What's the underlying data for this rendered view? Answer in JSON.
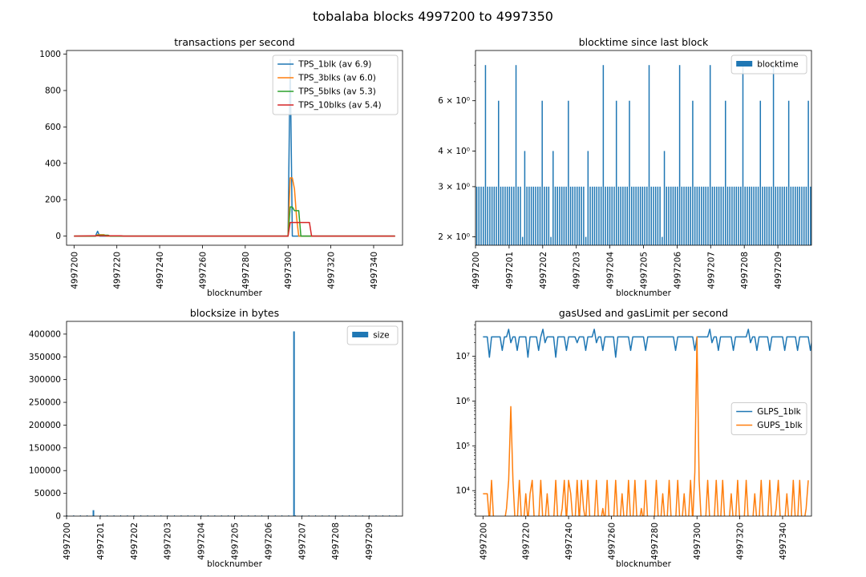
{
  "figure_title": "tobalaba blocks 4997200 to 4997350",
  "colors": {
    "blue": "#1f77b4",
    "orange": "#ff7f0e",
    "green": "#2ca02c",
    "red": "#d62728"
  },
  "chart_data": [
    {
      "id": "tps",
      "type": "line",
      "title": "transactions per second",
      "xlabel": "blocknumber",
      "ylabel": "",
      "xlim": [
        4997196.5,
        4997353.5
      ],
      "ylim": [
        -50,
        1020
      ],
      "xticks": [
        4997200,
        4997220,
        4997240,
        4997260,
        4997280,
        4997300,
        4997320,
        4997340
      ],
      "yticks": [
        0,
        200,
        400,
        600,
        800,
        1000
      ],
      "legend_position": "upper right",
      "series": [
        {
          "name": "TPS_1blk (av 6.9)",
          "color": "#1f77b4",
          "points": [
            [
              4997200,
              0
            ],
            [
              4997210,
              0
            ],
            [
              4997211,
              27
            ],
            [
              4997212,
              0
            ],
            [
              4997300,
              0
            ],
            [
              4997301,
              970
            ],
            [
              4997302,
              0
            ],
            [
              4997350,
              0
            ]
          ]
        },
        {
          "name": "TPS_3blks (av 6.0)",
          "color": "#ff7f0e",
          "points": [
            [
              4997200,
              0
            ],
            [
              4997210,
              0
            ],
            [
              4997211,
              8
            ],
            [
              4997214,
              8
            ],
            [
              4997215,
              0
            ],
            [
              4997300,
              0
            ],
            [
              4997301,
              320
            ],
            [
              4997302,
              320
            ],
            [
              4997303,
              260
            ],
            [
              4997304,
              100
            ],
            [
              4997305,
              0
            ],
            [
              4997350,
              0
            ]
          ]
        },
        {
          "name": "TPS_5blks (av 5.3)",
          "color": "#2ca02c",
          "points": [
            [
              4997200,
              0
            ],
            [
              4997210,
              0
            ],
            [
              4997211,
              5
            ],
            [
              4997216,
              5
            ],
            [
              4997217,
              0
            ],
            [
              4997300,
              0
            ],
            [
              4997301,
              160
            ],
            [
              4997302,
              160
            ],
            [
              4997303,
              140
            ],
            [
              4997305,
              140
            ],
            [
              4997306,
              0
            ],
            [
              4997350,
              0
            ]
          ]
        },
        {
          "name": "TPS_10blks (av 5.4)",
          "color": "#d62728",
          "points": [
            [
              4997200,
              0
            ],
            [
              4997210,
              2
            ],
            [
              4997222,
              2
            ],
            [
              4997223,
              0
            ],
            [
              4997300,
              0
            ],
            [
              4997301,
              75
            ],
            [
              4997310,
              75
            ],
            [
              4997311,
              0
            ],
            [
              4997350,
              0
            ]
          ]
        }
      ]
    },
    {
      "id": "blocktime",
      "type": "bar",
      "title": "blocktime since last block",
      "xlabel": "blocknumber",
      "ylabel": "",
      "yscale": "log",
      "xlim": [
        4997200,
        4997210
      ],
      "ylim": [
        1.87,
        9.0
      ],
      "xticks": [
        4997200,
        4997201,
        4997202,
        4997203,
        4997204,
        4997205,
        4997206,
        4997207,
        4997208,
        4997209
      ],
      "yticks": [
        2,
        3,
        4,
        6
      ],
      "ytick_labels": [
        "2 × 10⁰",
        "3 × 10⁰",
        "4 × 10⁰",
        "6 × 10⁰"
      ],
      "legend_position": "upper right",
      "series": [
        {
          "name": "blocktime",
          "color": "#1f77b4",
          "values": [
            3,
            3,
            3,
            3,
            8,
            3,
            3,
            3,
            3,
            3,
            6,
            3,
            3,
            3,
            3,
            3,
            3,
            3,
            8,
            3,
            3,
            2,
            4,
            3,
            3,
            3,
            3,
            3,
            3,
            3,
            6,
            3,
            3,
            3,
            2,
            4,
            3,
            3,
            3,
            3,
            3,
            3,
            6,
            3,
            3,
            3,
            3,
            3,
            3,
            3,
            2,
            4,
            3,
            3,
            3,
            3,
            3,
            3,
            8,
            3,
            3,
            3,
            3,
            3,
            6,
            3,
            3,
            3,
            3,
            3,
            6,
            3,
            3,
            3,
            3,
            3,
            3,
            3,
            3,
            8,
            3,
            3,
            3,
            3,
            3,
            2,
            4,
            3,
            3,
            3,
            3,
            3,
            3,
            8,
            3,
            3,
            3,
            3,
            3,
            6,
            3,
            3,
            3,
            3,
            3,
            3,
            3,
            8,
            3,
            3,
            3,
            3,
            3,
            3,
            6,
            3,
            3,
            3,
            3,
            3,
            3,
            3,
            8,
            3,
            3,
            3,
            3,
            3,
            3,
            3,
            6,
            3,
            3,
            3,
            3,
            3,
            8,
            3,
            3,
            3,
            3,
            3,
            3,
            6,
            3,
            3,
            3,
            3,
            3,
            3,
            3,
            3,
            6,
            3
          ]
        }
      ]
    },
    {
      "id": "blocksize",
      "type": "bar",
      "title": "blocksize in bytes",
      "xlabel": "blocknumber",
      "ylabel": "",
      "xlim": [
        4997200,
        4997210
      ],
      "ylim": [
        0,
        428000
      ],
      "xticks": [
        4997200,
        4997201,
        4997202,
        4997203,
        4997204,
        4997205,
        4997206,
        4997207,
        4997208,
        4997209
      ],
      "yticks": [
        0,
        50000,
        100000,
        150000,
        200000,
        250000,
        300000,
        350000,
        400000
      ],
      "legend_position": "upper right",
      "series": [
        {
          "name": "size",
          "color": "#1f77b4",
          "values": [
            [
              4997200.8,
              13000
            ],
            [
              4997206.77,
              406000
            ]
          ]
        }
      ]
    },
    {
      "id": "gas",
      "type": "line",
      "title": "gasUsed and gasLimit per second",
      "xlabel": "blocknumber",
      "ylabel": "",
      "yscale": "log",
      "xlim": [
        4997196.5,
        4997353.5
      ],
      "ylim": [
        2700,
        60000000
      ],
      "xticks": [
        4997200,
        4997220,
        4997240,
        4997260,
        4997280,
        4997300,
        4997320,
        4997340
      ],
      "yticks": [
        10000,
        100000,
        1000000,
        10000000
      ],
      "ytick_labels": [
        "10⁴",
        "10⁵",
        "10⁶",
        "10⁷"
      ],
      "legend_position": "center right",
      "series": [
        {
          "name": "GLPS_1blk",
          "color": "#1f77b4",
          "values": [
            27000000,
            27000000,
            27000000,
            9500000,
            27000000,
            27000000,
            27000000,
            27000000,
            27000000,
            13500000,
            27000000,
            27000000,
            40000000,
            20000000,
            27000000,
            27000000,
            13500000,
            27000000,
            27000000,
            27000000,
            27000000,
            9500000,
            27000000,
            27000000,
            27000000,
            27000000,
            13500000,
            27000000,
            40000000,
            20000000,
            27000000,
            27000000,
            27000000,
            27000000,
            9500000,
            27000000,
            27000000,
            27000000,
            27000000,
            13500000,
            27000000,
            27000000,
            27000000,
            27000000,
            20000000,
            27000000,
            27000000,
            27000000,
            13500000,
            27000000,
            27000000,
            27000000,
            40000000,
            20000000,
            27000000,
            27000000,
            13500000,
            27000000,
            27000000,
            27000000,
            27000000,
            27000000,
            9500000,
            27000000,
            27000000,
            27000000,
            27000000,
            27000000,
            27000000,
            13500000,
            27000000,
            27000000,
            27000000,
            27000000,
            27000000,
            27000000,
            13500000,
            27000000,
            27000000,
            27000000,
            27000000,
            27000000,
            27000000,
            27000000,
            27000000,
            27000000,
            27000000,
            27000000,
            27000000,
            27000000,
            13500000,
            27000000,
            27000000,
            27000000,
            27000000,
            27000000,
            27000000,
            27000000,
            27000000,
            13500000,
            27000000,
            27000000,
            27000000,
            27000000,
            27000000,
            27000000,
            40000000,
            20000000,
            27000000,
            27000000,
            13500000,
            27000000,
            27000000,
            27000000,
            27000000,
            27000000,
            27000000,
            13500000,
            27000000,
            27000000,
            27000000,
            27000000,
            27000000,
            27000000,
            40000000,
            20000000,
            27000000,
            27000000,
            13500000,
            27000000,
            27000000,
            27000000,
            27000000,
            27000000,
            13500000,
            27000000,
            27000000,
            27000000,
            27000000,
            27000000,
            27000000,
            13500000,
            27000000,
            27000000,
            27000000,
            27000000,
            27000000,
            13500000,
            27000000,
            27000000,
            27000000,
            27000000,
            27000000,
            13500000,
            27000000
          ]
        },
        {
          "name": "GUPS_1blk",
          "color": "#ff7f0e",
          "values": [
            8500,
            8500,
            8500,
            2000,
            17000,
            2000,
            2000,
            2000,
            2000,
            2000,
            2000,
            4000,
            17000,
            750000,
            17000,
            2000,
            2000,
            17000,
            2000,
            2000,
            8500,
            2000,
            8500,
            17000,
            2000,
            2000,
            2000,
            17000,
            2000,
            2000,
            8500,
            2000,
            2000,
            2000,
            17000,
            2000,
            2000,
            4000,
            17000,
            2000,
            17000,
            8500,
            2000,
            2000,
            17000,
            2000,
            17000,
            4000,
            2000,
            17000,
            2000,
            2000,
            2000,
            17000,
            2000,
            2000,
            4000,
            2000,
            17000,
            2000,
            2000,
            2000,
            17000,
            2000,
            2000,
            8500,
            2000,
            2000,
            17000,
            2000,
            2000,
            17000,
            2000,
            2000,
            4000,
            2000,
            17000,
            2000,
            2000,
            2000,
            2000,
            17000,
            2000,
            2000,
            8500,
            2000,
            2000,
            17000,
            2000,
            2000,
            2000,
            17000,
            2000,
            2000,
            8500,
            2000,
            2000,
            17000,
            2000,
            26000,
            27000000,
            17000,
            2000,
            2000,
            2000,
            17000,
            2000,
            2000,
            2000,
            17000,
            2000,
            2000,
            17000,
            2000,
            2000,
            2000,
            8500,
            2000,
            2000,
            17000,
            2000,
            2000,
            2000,
            17000,
            2000,
            2000,
            2000,
            8500,
            2000,
            2000,
            17000,
            2000,
            2000,
            2000,
            17000,
            2000,
            2000,
            4000,
            17000,
            2000,
            2000,
            2000,
            8500,
            2000,
            2000,
            17000,
            2000,
            2000,
            17000,
            2000,
            2000,
            4000,
            17000
          ]
        }
      ]
    }
  ]
}
